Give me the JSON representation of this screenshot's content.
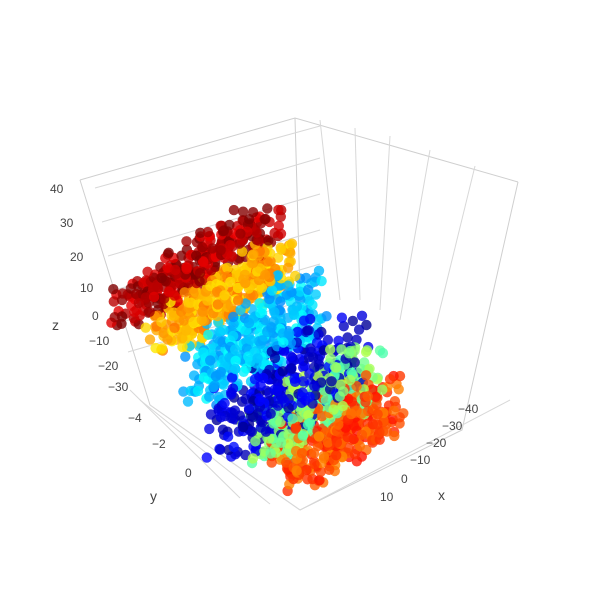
{
  "chart_data": {
    "type": "scatter",
    "subtype": "3d-scatter",
    "title": "",
    "xlabel": "x",
    "ylabel": "y",
    "zlabel": "z",
    "xlim": [
      -48,
      12
    ],
    "ylim": [
      -5,
      1
    ],
    "zlim": [
      -35,
      45
    ],
    "x_ticks": [
      "−40",
      "−30",
      "−20",
      "−10",
      "0",
      "10"
    ],
    "y_ticks": [
      "−4",
      "−2",
      "0"
    ],
    "z_ticks": [
      "40",
      "30",
      "20",
      "10",
      "0",
      "−10",
      "−20",
      "−30"
    ],
    "grid": true,
    "legend": "none",
    "colorscale": "jet",
    "colorscale_colors": [
      "#00007f",
      "#0000ff",
      "#007fff",
      "#00ffff",
      "#7fff7f",
      "#ffff00",
      "#ff7f00",
      "#ff0000",
      "#7f0000"
    ],
    "marker_opacity": 0.8,
    "series": [
      {
        "name": "",
        "points_description": "dense cloud of ~2000 points arranged in layered bands",
        "bands": [
          {
            "color_level": 0.95,
            "z_range": [
              30,
              42
            ],
            "y_range": [
              -5,
              -3
            ],
            "x_range": [
              -45,
              8
            ]
          },
          {
            "color_level": 0.7,
            "z_range": [
              20,
              32
            ],
            "y_range": [
              -4,
              -2
            ],
            "x_range": [
              -42,
              5
            ]
          },
          {
            "color_level": 0.32,
            "z_range": [
              0,
              22
            ],
            "y_range": [
              -3,
              -1
            ],
            "x_range": [
              -40,
              5
            ]
          },
          {
            "color_level": 0.08,
            "z_range": [
              -20,
              5
            ],
            "y_range": [
              -2.5,
              0
            ],
            "x_range": [
              -35,
              8
            ]
          },
          {
            "color_level": 0.5,
            "z_range": [
              -25,
              -5
            ],
            "y_range": [
              -1.5,
              0.5
            ],
            "x_range": [
              -30,
              10
            ]
          },
          {
            "color_level": 0.8,
            "z_range": [
              -35,
              -15
            ],
            "y_range": [
              -1,
              1
            ],
            "x_range": [
              -25,
              12
            ]
          }
        ]
      }
    ]
  }
}
